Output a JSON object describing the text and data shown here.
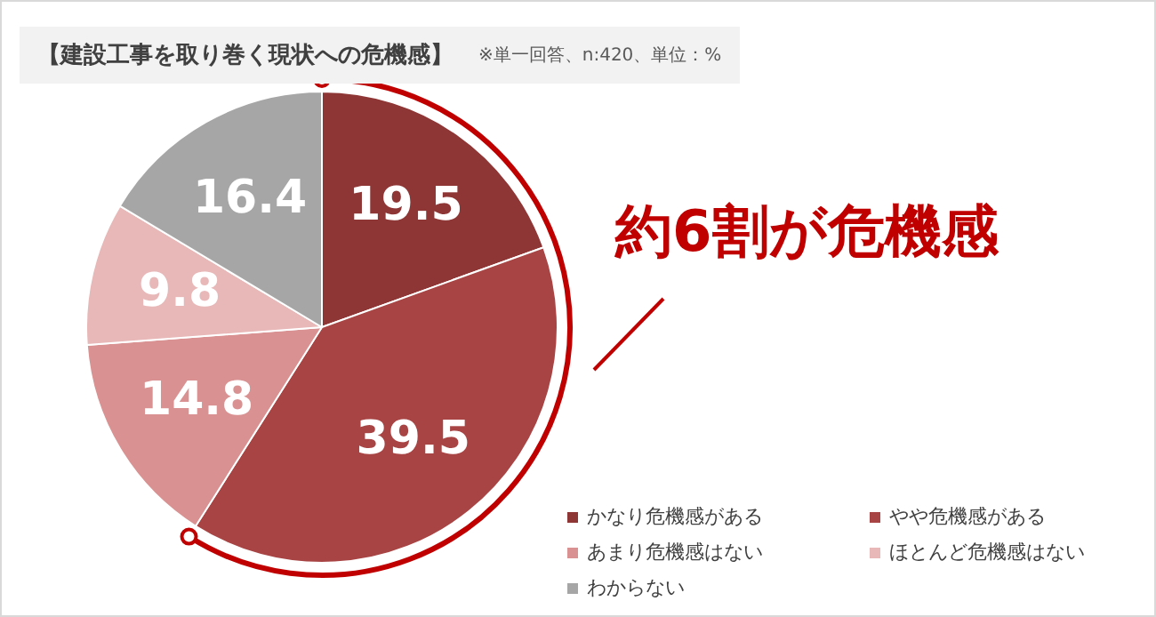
{
  "chart_data": {
    "type": "pie",
    "title": "【建設工事を取り巻く現状への危機感】",
    "subtitle": "※単一回答、n:420、単位：%",
    "categories": [
      "かなり危機感がある",
      "やや危機感がある",
      "あまり危機感はない",
      "ほとんど危機感はない",
      "わからない"
    ],
    "values": [
      19.5,
      39.5,
      14.8,
      9.8,
      16.4
    ],
    "colors": [
      "#8e3535",
      "#a84444",
      "#d99191",
      "#e8b7b7",
      "#a6a6a6"
    ],
    "data_labels": true,
    "legend": "bottom right",
    "annotations": [
      "約6割が危機感"
    ]
  }
}
